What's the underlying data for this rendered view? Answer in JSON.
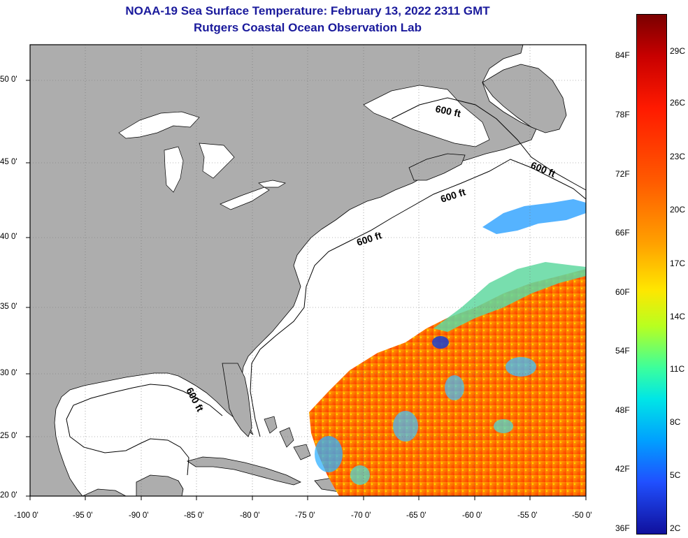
{
  "title": {
    "line1": "NOAA-19 Sea Surface Temperature:  February 13, 2022 2311 GMT",
    "line2": "Rutgers Coastal Ocean Observation Lab"
  },
  "map": {
    "lat_ticks": [
      "50 0'",
      "45 0'",
      "40 0'",
      "35 0'",
      "30 0'",
      "25 0'",
      "20 0'"
    ],
    "lon_ticks": [
      "-100 0'",
      "-95 0'",
      "-90 0'",
      "-85 0'",
      "-80 0'",
      "-75 0'",
      "-70 0'",
      "-65 0'",
      "-60 0'",
      "-55 0'",
      "-50 0'"
    ],
    "contour_labels": [
      "600 ft",
      "600 ft",
      "600 ft",
      "600 ft",
      "600 ft"
    ],
    "land_color": "#adadad",
    "ocean_color": "#ffffff"
  },
  "colorbar": {
    "fahrenheit": [
      "84F",
      "78F",
      "72F",
      "66F",
      "60F",
      "54F",
      "48F",
      "42F",
      "36F"
    ],
    "celsius": [
      "29C",
      "26C",
      "23C",
      "20C",
      "17C",
      "14C",
      "11C",
      "8C",
      "5C",
      "2C"
    ],
    "scale_colors": [
      "#7a0000",
      "#ff1a00",
      "#ffa000",
      "#ffe600",
      "#3cff9c",
      "#00a0ff",
      "#10109c"
    ]
  }
}
